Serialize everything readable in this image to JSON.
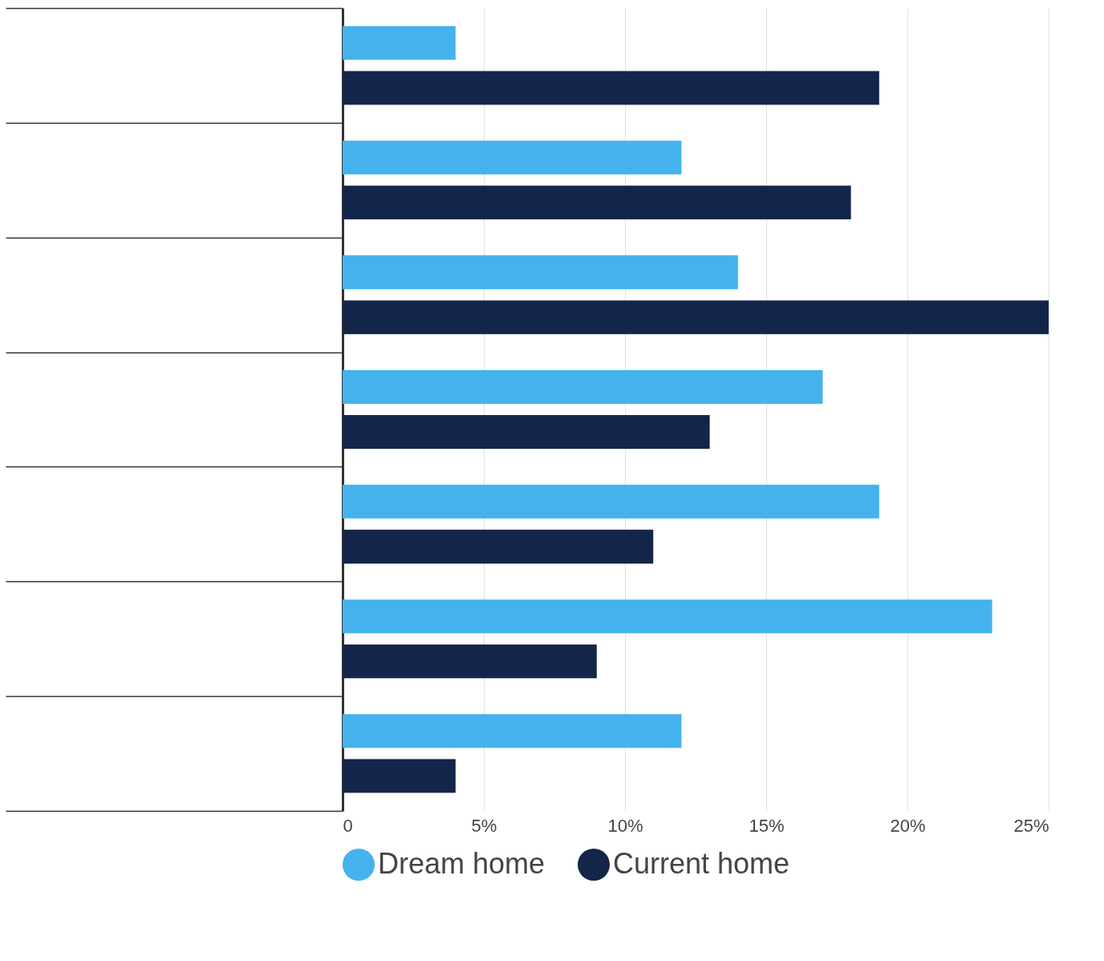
{
  "chart_data": {
    "type": "bar",
    "orientation": "horizontal",
    "categories": [
      null,
      null,
      null,
      null,
      null,
      null,
      null
    ],
    "series": [
      {
        "name": "Dream home",
        "color": "#45b2ee",
        "values": [
          4,
          12,
          14,
          17,
          19,
          23,
          12
        ]
      },
      {
        "name": "Current home",
        "color": "#14254a",
        "values": [
          19,
          18,
          25,
          13,
          11,
          9,
          4
        ]
      }
    ],
    "xlim": [
      0,
      25
    ],
    "xticks": [
      {
        "value": 0,
        "label": "0"
      },
      {
        "value": 5,
        "label": "5%"
      },
      {
        "value": 10,
        "label": "10%"
      },
      {
        "value": 15,
        "label": "15%"
      },
      {
        "value": 20,
        "label": "20%"
      },
      {
        "value": 25,
        "label": "25%"
      }
    ],
    "grid": "x",
    "legend": "bottom"
  }
}
